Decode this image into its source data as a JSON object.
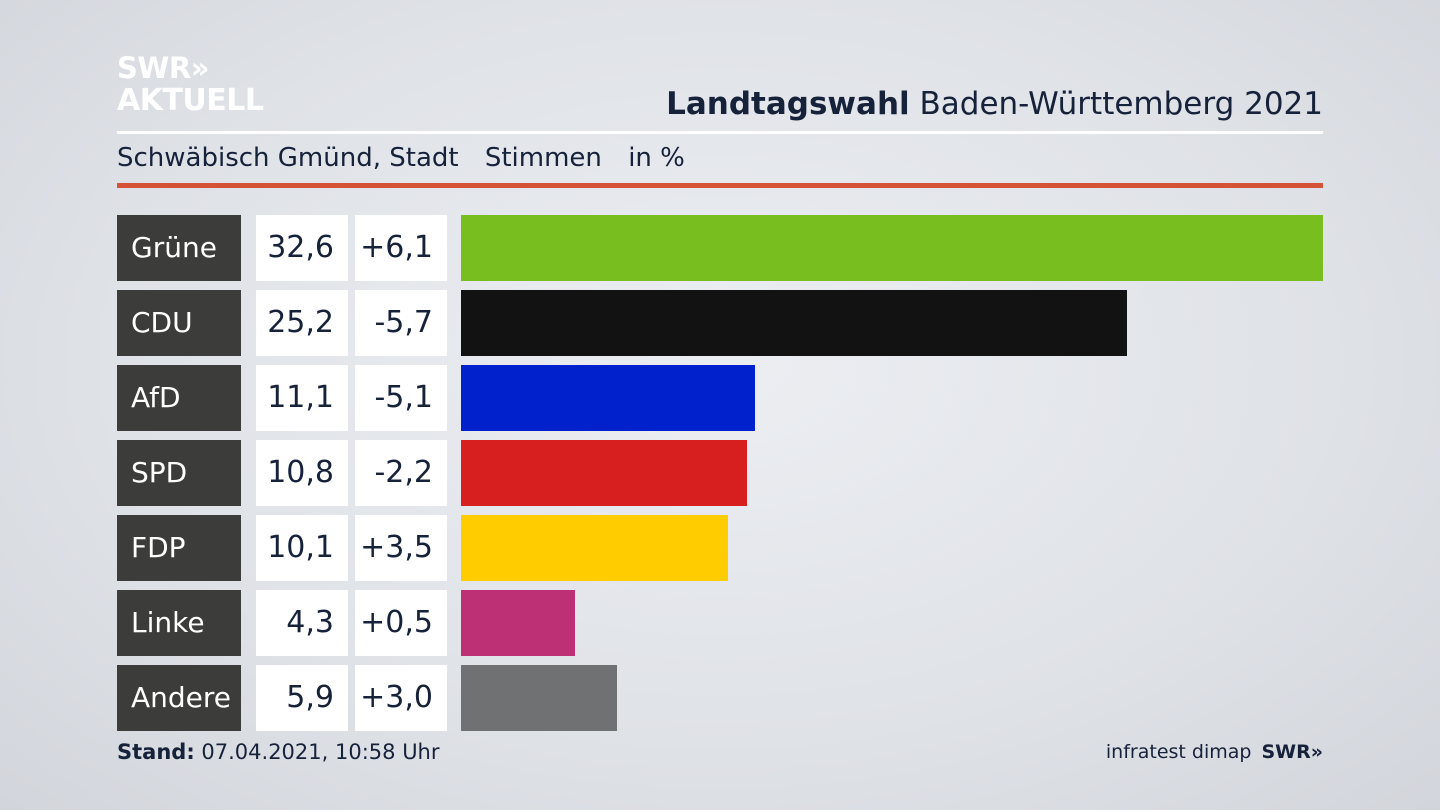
{
  "brand": {
    "logo_line1": "SWR",
    "logo_chevrons": "»",
    "logo_line2": "AKTUELL"
  },
  "header": {
    "title_bold": "Landtagswahl",
    "title_rest": "Baden-Württemberg 2021"
  },
  "subheader": {
    "region": "Schwäbisch Gmünd, Stadt",
    "measure": "Stimmen",
    "unit": "in %"
  },
  "footer": {
    "stand_label": "Stand:",
    "stand_value": "07.04.2021, 10:58 Uhr",
    "source": "infratest dimap",
    "source_brand": "SWR»"
  },
  "colors": {
    "accent_rule": "#d65237",
    "label_bg": "#3c3c3b"
  },
  "chart_data": {
    "type": "bar",
    "orientation": "horizontal",
    "categories": [
      "Grüne",
      "CDU",
      "AfD",
      "SPD",
      "FDP",
      "Linke",
      "Andere"
    ],
    "values": [
      32.6,
      25.2,
      11.1,
      10.8,
      10.1,
      4.3,
      5.9
    ],
    "values_text": [
      "32,6",
      "25,2",
      "11,1",
      "10,8",
      "10,1",
      "4,3",
      "5,9"
    ],
    "changes": [
      6.1,
      -5.7,
      -5.1,
      -2.2,
      3.5,
      0.5,
      3.0
    ],
    "changes_text": [
      "+6,1",
      "-5,7",
      "-5,1",
      "-2,2",
      "+3,5",
      "+0,5",
      "+3,0"
    ],
    "colors": [
      "#78be1e",
      "#121212",
      "#0021cc",
      "#d71f1f",
      "#ffcc00",
      "#be3075",
      "#707173"
    ],
    "xlim": [
      0,
      32.6
    ],
    "grid": false,
    "legend": "none"
  }
}
